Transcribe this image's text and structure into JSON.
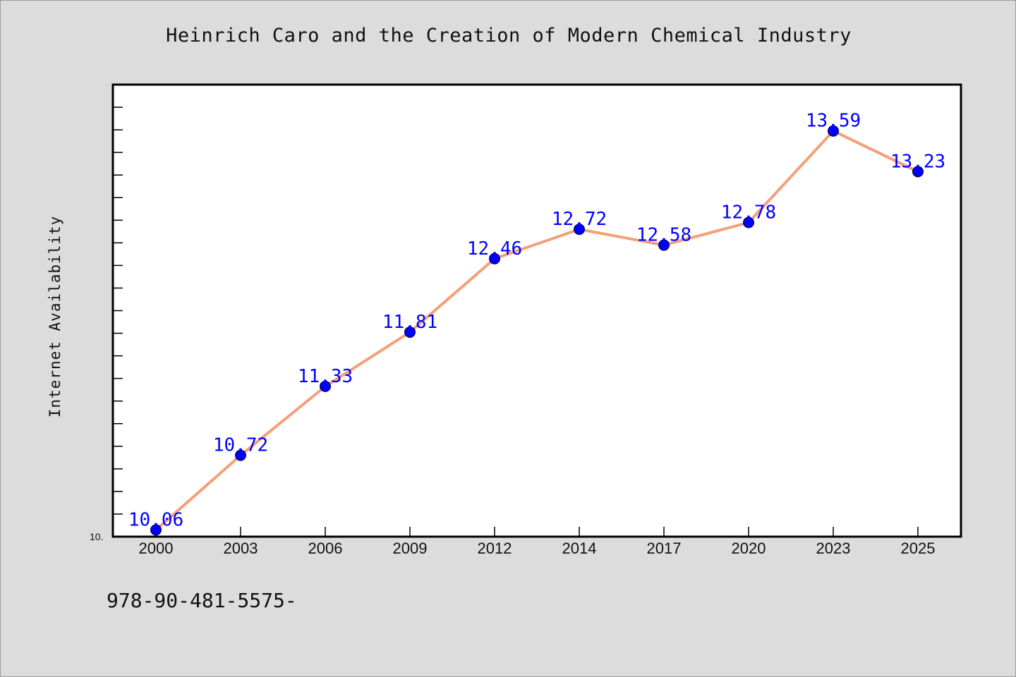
{
  "chart_data": {
    "type": "line",
    "title": "Heinrich Caro and the Creation of Modern Chemical Industry",
    "xlabel": "",
    "ylabel": "Internet Availability",
    "categories": [
      "2000",
      "2003",
      "2006",
      "2009",
      "2012",
      "2014",
      "2017",
      "2020",
      "2023",
      "2025"
    ],
    "series": [
      {
        "values": [
          10.06,
          10.72,
          11.33,
          11.81,
          12.46,
          12.72,
          12.58,
          12.78,
          13.59,
          13.23
        ],
        "line_color": "#f4a07a",
        "marker_color": "#0000ff"
      }
    ],
    "data_labels": [
      "10.06",
      "10.72",
      "11.33",
      "11.81",
      "12.46",
      "12.72",
      "12.58",
      "12.78",
      "13.59",
      "13.23"
    ],
    "ylim": [
      10.0,
      14.0
    ],
    "y_tick_label": "10.",
    "grid": false,
    "legend": "none"
  },
  "footer": {
    "code": "978-90-481-5575-"
  },
  "colors": {
    "background": "#dcdcdc",
    "plot_background": "#ffffff",
    "line": "#f4a07a",
    "marker": "#0000ff",
    "label": "#0000ff"
  }
}
